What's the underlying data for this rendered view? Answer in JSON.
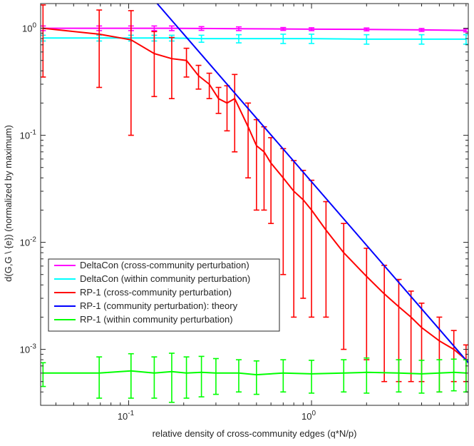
{
  "chart_data": {
    "type": "line",
    "title": "",
    "xlabel": "relative density of cross-community edges (q*N/p)",
    "ylabel": "d(G,G \\ {e}) (normalized by maximum)",
    "xscale": "log",
    "yscale": "log",
    "xlim": [
      0.033,
      7.2
    ],
    "ylim": [
      0.0003,
      1.7
    ],
    "x_ticks": [
      {
        "value": 0.1,
        "base": "10",
        "exp": "-1"
      },
      {
        "value": 1,
        "base": "10",
        "exp": "0"
      }
    ],
    "y_ticks": [
      {
        "value": 0.001,
        "base": "10",
        "exp": "-3"
      },
      {
        "value": 0.01,
        "base": "10",
        "exp": "-2"
      },
      {
        "value": 0.1,
        "base": "10",
        "exp": "-1"
      },
      {
        "value": 1,
        "base": "10",
        "exp": "0"
      }
    ],
    "grid": false,
    "legend_position": "lower-left",
    "series": [
      {
        "name": "DeltaCon (cross-community perturbation)",
        "color": "#ff00ff",
        "x": [
          0.034,
          0.069,
          0.103,
          0.138,
          0.172,
          0.25,
          0.4,
          0.7,
          1.0,
          2.0,
          4.0,
          7.0
        ],
        "y": [
          1.0,
          1.0,
          1.0,
          1.0,
          1.0,
          0.995,
          0.99,
          0.985,
          0.98,
          0.975,
          0.965,
          0.955
        ],
        "err": [
          0.05,
          0.05,
          0.05,
          0.05,
          0.05,
          0.04,
          0.04,
          0.03,
          0.03,
          0.03,
          0.03,
          0.03
        ]
      },
      {
        "name": "DeltaCon (within community perturbation)",
        "color": "#00ffff",
        "x": [
          0.034,
          0.069,
          0.103,
          0.138,
          0.172,
          0.25,
          0.4,
          0.7,
          1.0,
          2.0,
          4.0,
          7.0
        ],
        "y": [
          0.81,
          0.81,
          0.81,
          0.81,
          0.81,
          0.8,
          0.8,
          0.8,
          0.8,
          0.79,
          0.79,
          0.79
        ],
        "err": [
          0.05,
          0.05,
          0.05,
          0.05,
          0.05,
          0.06,
          0.07,
          0.08,
          0.08,
          0.08,
          0.08,
          0.08
        ]
      },
      {
        "name": "RP-1 (cross-community perturbation)",
        "color": "#ff0000",
        "x": [
          0.034,
          0.069,
          0.103,
          0.138,
          0.172,
          0.207,
          0.241,
          0.276,
          0.31,
          0.345,
          0.38,
          0.45,
          0.5,
          0.55,
          0.6,
          0.7,
          0.8,
          0.9,
          1.0,
          1.2,
          1.5,
          2.0,
          2.5,
          3.0,
          3.5,
          4.0,
          5.0,
          6.0,
          7.0
        ],
        "y": [
          1.0,
          0.88,
          0.78,
          0.58,
          0.52,
          0.5,
          0.36,
          0.3,
          0.22,
          0.2,
          0.22,
          0.12,
          0.08,
          0.07,
          0.055,
          0.04,
          0.03,
          0.025,
          0.02,
          0.013,
          0.008,
          0.0048,
          0.0033,
          0.0025,
          0.002,
          0.0016,
          0.0012,
          0.001,
          0.0008
        ],
        "err": [
          0.65,
          0.6,
          0.68,
          0.35,
          0.3,
          0.15,
          0.09,
          0.08,
          0.06,
          0.09,
          0.15,
          0.08,
          0.06,
          0.05,
          0.04,
          0.035,
          0.028,
          0.022,
          0.018,
          0.011,
          0.007,
          0.004,
          0.0028,
          0.002,
          0.0015,
          0.0011,
          0.0008,
          0.0005,
          0.0003
        ]
      },
      {
        "name": "RP-1 (community perturbation): theory",
        "color": "#0000ff",
        "x": [
          0.034,
          7.2
        ],
        "y": [
          29.0,
          0.00075
        ]
      },
      {
        "name": "RP-1 (within community perturbation)",
        "color": "#00ff00",
        "x": [
          0.034,
          0.069,
          0.103,
          0.138,
          0.172,
          0.207,
          0.25,
          0.3,
          0.4,
          0.5,
          0.7,
          1.0,
          1.5,
          2.0,
          3.0,
          4.0,
          5.0,
          6.0,
          7.0
        ],
        "y": [
          0.0006,
          0.0006,
          0.00063,
          0.0006,
          0.00062,
          0.0006,
          0.00061,
          0.0006,
          0.0006,
          0.00058,
          0.0006,
          0.00059,
          0.0006,
          0.00061,
          0.0006,
          0.00059,
          0.0006,
          0.00061,
          0.0006
        ],
        "err": [
          0.00015,
          0.00025,
          0.00028,
          0.00025,
          0.0003,
          0.00025,
          0.00025,
          0.00022,
          0.0002,
          0.0002,
          0.0002,
          0.0002,
          0.0002,
          0.00022,
          0.0002,
          0.0002,
          0.0002,
          0.0002,
          0.0002
        ]
      }
    ]
  }
}
